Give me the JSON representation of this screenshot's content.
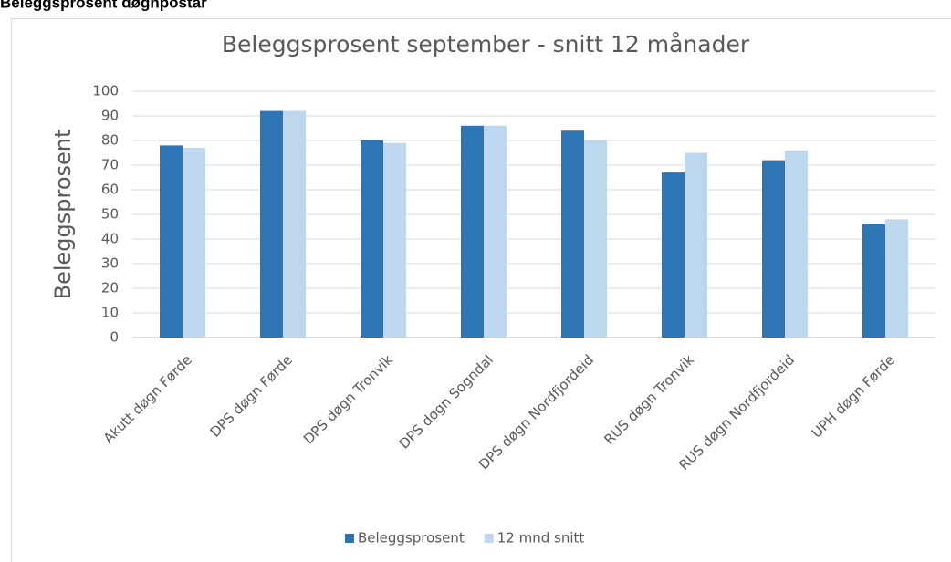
{
  "header": "Beleggsprosent døgnpostar",
  "chart_data": {
    "type": "bar",
    "title": "Beleggsprosent september -  snitt 12 månader",
    "y_label": "Beleggsprosent",
    "categories": [
      "Akutt døgn Førde",
      "DPS døgn Førde",
      "DPS døgn Tronvik",
      "DPS døgn Sogndal",
      "DPS døgn Nordfjordeid",
      "RUS døgn Tronvik",
      "RUS døgn Nordfjordeid",
      "UPH døgn Førde"
    ],
    "series": [
      {
        "name": "Beleggsprosent",
        "color": "#2e75b6",
        "values": [
          78,
          92,
          80,
          86,
          84,
          67,
          72,
          46
        ]
      },
      {
        "name": "12 mnd snitt",
        "color": "#bdd7ee",
        "values": [
          77,
          92,
          79,
          86,
          80,
          75,
          76,
          48
        ]
      }
    ],
    "ylim": [
      0,
      100
    ],
    "yticks": [
      0,
      10,
      20,
      30,
      40,
      50,
      60,
      70,
      80,
      90,
      100
    ],
    "grid": true,
    "legend": "bottom"
  }
}
